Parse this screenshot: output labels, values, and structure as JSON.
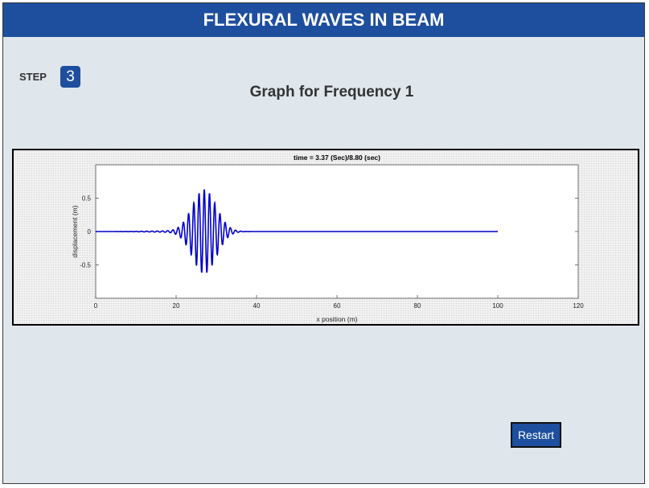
{
  "app": {
    "title": "FLEXURAL WAVES IN BEAM"
  },
  "step": {
    "label": "STEP",
    "number": "3"
  },
  "graph": {
    "title": "Graph for Frequency 1"
  },
  "chart_data": {
    "type": "line",
    "title": "time = 3.37 (Sec)/8.80 (sec)",
    "xlabel": "x position (m)",
    "ylabel": "displacement (m)",
    "xlim": [
      0,
      120
    ],
    "ylim": [
      -1,
      1
    ],
    "xticks": [
      "0",
      "20",
      "40",
      "60",
      "80",
      "100",
      "120"
    ],
    "yticks": [
      "0.5",
      "0",
      "-0.5"
    ],
    "grid": false,
    "series": [
      {
        "color": "#0000cc",
        "wave_packet": {
          "center_x": 27,
          "amplitude": 0.63,
          "wavelength": 1.3,
          "x_start": 0,
          "x_end": 100
        }
      }
    ]
  },
  "controls": {
    "restart_label": "Restart"
  }
}
